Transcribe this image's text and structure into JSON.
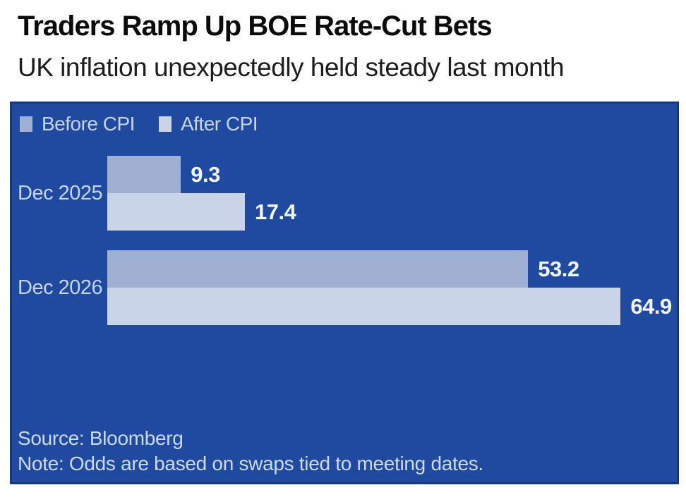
{
  "header": {
    "title": "Traders Ramp Up BOE Rate-Cut Bets",
    "subtitle": "UK inflation unexpectedly held steady last month"
  },
  "chart_data": {
    "type": "bar",
    "orientation": "horizontal",
    "title": "Traders Ramp Up BOE Rate-Cut Bets",
    "subtitle": "UK inflation unexpectedly held steady last month",
    "categories": [
      "Dec 2025",
      "Dec 2026"
    ],
    "series": [
      {
        "name": "Before CPI",
        "color": "#9fb0d2",
        "values": [
          9.3,
          53.2
        ]
      },
      {
        "name": "After CPI",
        "color": "#c9d4e8",
        "values": [
          17.4,
          64.9
        ]
      }
    ],
    "xlim": [
      0,
      72
    ],
    "grid": false,
    "legend_position": "top-left",
    "data_labels": "end-of-bar",
    "colors": {
      "panel_background": "#1f4aa0",
      "panel_border": "#17377e",
      "label_text": "#c6d4ef",
      "value_text": "#f1f5fd"
    },
    "source": "Source: Bloomberg",
    "note": "Note: Odds are based on swaps tied to meeting dates."
  }
}
